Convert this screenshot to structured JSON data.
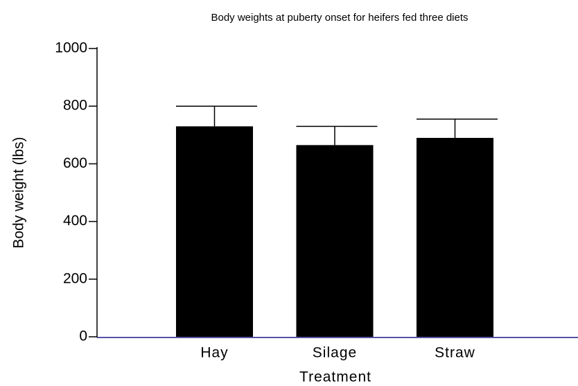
{
  "chart_data": {
    "type": "bar",
    "title": "Body weights at puberty onset for heifers fed three diets",
    "xlabel": "Treatment",
    "ylabel": "Body weight (lbs)",
    "categories": [
      "Hay",
      "Silage",
      "Straw"
    ],
    "values": [
      730,
      665,
      690
    ],
    "errors": [
      70,
      65,
      65
    ],
    "color": "#000000",
    "ylim": [
      0,
      1000
    ],
    "yticks": [
      0,
      200,
      400,
      600,
      800,
      1000
    ],
    "grid": false
  }
}
